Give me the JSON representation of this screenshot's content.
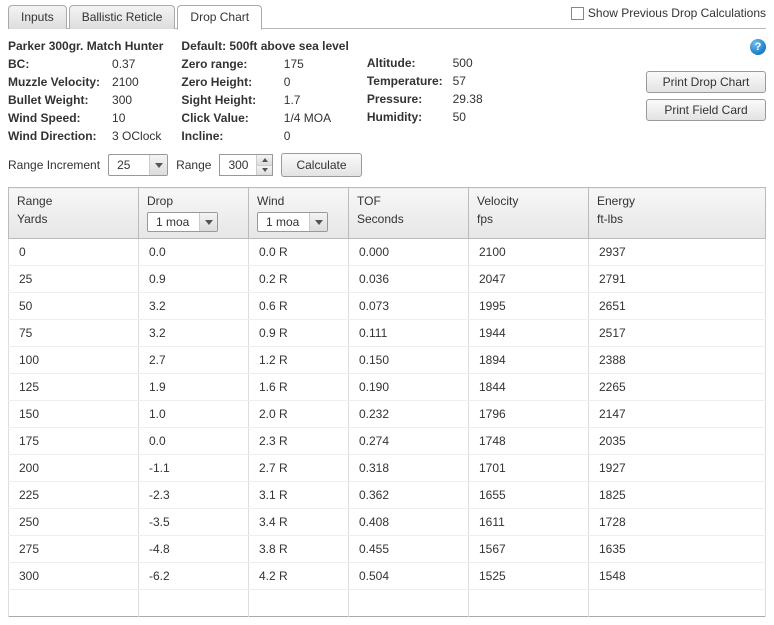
{
  "tabs": {
    "inputs": "Inputs",
    "reticle": "Ballistic Reticle",
    "drop": "Drop Chart"
  },
  "show_prev_label": "Show Previous Drop Calculations",
  "help_char": "?",
  "buttons": {
    "print_drop": "Print Drop Chart",
    "print_field": "Print Field Card",
    "calculate": "Calculate"
  },
  "header_left_title": "Parker 300gr. Match Hunter",
  "header_mid_title": "Default: 500ft above sea level",
  "left_col": {
    "bc_l": "BC:",
    "bc_v": "0.37",
    "mv_l": "Muzzle Velocity:",
    "mv_v": "2100",
    "bw_l": "Bullet Weight:",
    "bw_v": "300",
    "ws_l": "Wind Speed:",
    "ws_v": "10",
    "wd_l": "Wind Direction:",
    "wd_v": "3 OClock"
  },
  "mid_col": {
    "zr_l": "Zero range:",
    "zr_v": "175",
    "zh_l": "Zero Height:",
    "zh_v": "0",
    "sh_l": "Sight Height:",
    "sh_v": "1.7",
    "cv_l": "Click Value:",
    "cv_v": "1/4 MOA",
    "in_l": "Incline:",
    "in_v": "0"
  },
  "right_col": {
    "alt_l": "Altitude:",
    "alt_v": "500",
    "tmp_l": "Temperature:",
    "tmp_v": "57",
    "pr_l": "Pressure:",
    "pr_v": "29.38",
    "hu_l": "Humidity:",
    "hu_v": "50"
  },
  "controls": {
    "range_inc_label": "Range Increment",
    "range_inc_value": "25",
    "range_label": "Range",
    "range_value": "300"
  },
  "table": {
    "headers": {
      "range": "Range",
      "range_unit": "Yards",
      "drop": "Drop",
      "drop_unit": "1 moa",
      "wind": "Wind",
      "wind_unit": "1 moa",
      "tof": "TOF",
      "tof_unit": "Seconds",
      "vel": "Velocity",
      "vel_unit": "fps",
      "en": "Energy",
      "en_unit": "ft-lbs"
    },
    "rows": [
      {
        "r": "0",
        "d": "0.0",
        "w": "0.0 R",
        "t": "0.000",
        "v": "2100",
        "e": "2937"
      },
      {
        "r": "25",
        "d": "0.9",
        "w": "0.2 R",
        "t": "0.036",
        "v": "2047",
        "e": "2791"
      },
      {
        "r": "50",
        "d": "3.2",
        "w": "0.6 R",
        "t": "0.073",
        "v": "1995",
        "e": "2651"
      },
      {
        "r": "75",
        "d": "3.2",
        "w": "0.9 R",
        "t": "0.111",
        "v": "1944",
        "e": "2517"
      },
      {
        "r": "100",
        "d": "2.7",
        "w": "1.2 R",
        "t": "0.150",
        "v": "1894",
        "e": "2388"
      },
      {
        "r": "125",
        "d": "1.9",
        "w": "1.6 R",
        "t": "0.190",
        "v": "1844",
        "e": "2265"
      },
      {
        "r": "150",
        "d": "1.0",
        "w": "2.0 R",
        "t": "0.232",
        "v": "1796",
        "e": "2147"
      },
      {
        "r": "175",
        "d": "0.0",
        "w": "2.3 R",
        "t": "0.274",
        "v": "1748",
        "e": "2035"
      },
      {
        "r": "200",
        "d": "-1.1",
        "w": "2.7 R",
        "t": "0.318",
        "v": "1701",
        "e": "1927"
      },
      {
        "r": "225",
        "d": "-2.3",
        "w": "3.1 R",
        "t": "0.362",
        "v": "1655",
        "e": "1825"
      },
      {
        "r": "250",
        "d": "-3.5",
        "w": "3.4 R",
        "t": "0.408",
        "v": "1611",
        "e": "1728"
      },
      {
        "r": "275",
        "d": "-4.8",
        "w": "3.8 R",
        "t": "0.455",
        "v": "1567",
        "e": "1635"
      },
      {
        "r": "300",
        "d": "-6.2",
        "w": "4.2 R",
        "t": "0.504",
        "v": "1525",
        "e": "1548"
      }
    ]
  }
}
